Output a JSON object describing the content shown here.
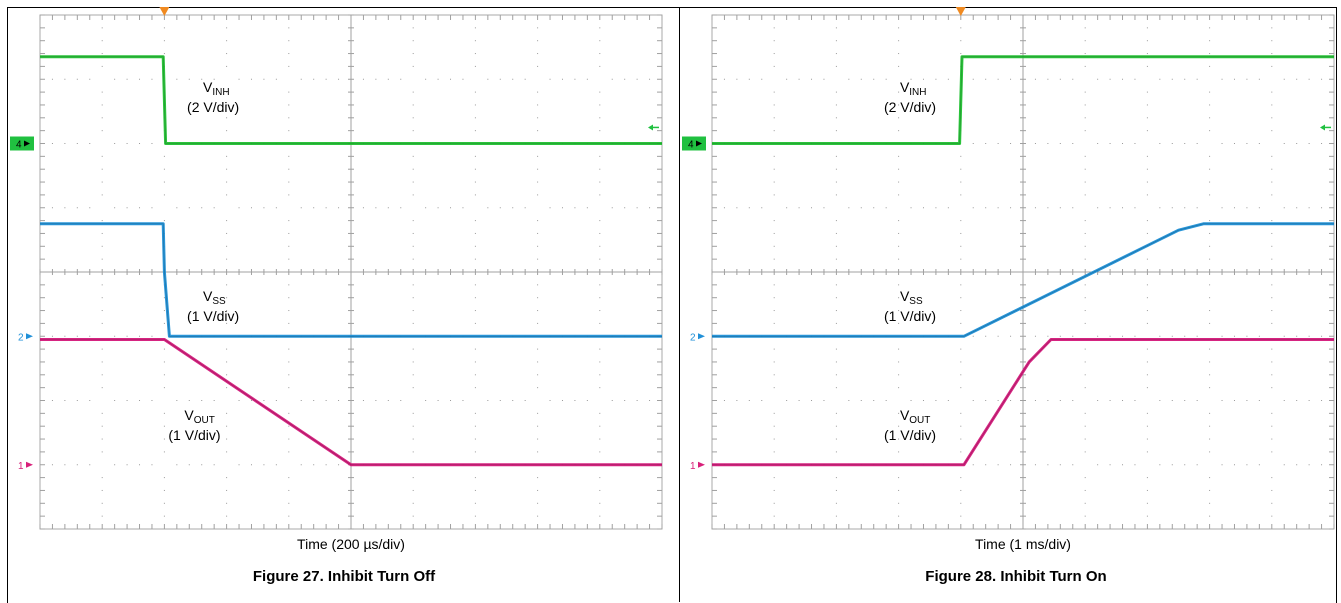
{
  "figures": [
    {
      "id": "fig27",
      "caption": "Figure 27. Inhibit Turn Off",
      "time_label": "Time (200 µs/div)",
      "chart_data": {
        "type": "line",
        "title": "Figure 27. Inhibit Turn Off",
        "xlabel": "Time (200 µs/div)",
        "ylabel": "",
        "x_unit": "div",
        "xlim": [
          0,
          10
        ],
        "ylim": [
          0,
          8
        ],
        "grid": true,
        "trigger_marker_x": 2,
        "channel_markers": [
          {
            "label": "4",
            "y": 6.0,
            "color": "#20c040"
          },
          {
            "label": "2",
            "y": 3.0,
            "color": "#2090d8"
          },
          {
            "label": "1",
            "y": 1.0,
            "color": "#d8207a"
          }
        ],
        "series": [
          {
            "name": "VINH",
            "color": "#20c030",
            "x": [
              0,
              1.98,
              2.02,
              10
            ],
            "y": [
              7.35,
              7.35,
              6.0,
              6.0
            ]
          },
          {
            "name": "VSS",
            "color": "#1c8fd6",
            "x": [
              0,
              1.98,
              2.0,
              2.08,
              10
            ],
            "y": [
              4.75,
              4.75,
              4.0,
              3.0,
              3.0
            ]
          },
          {
            "name": "VOUT",
            "color": "#d4187a",
            "x": [
              0,
              2.0,
              5.0,
              10
            ],
            "y": [
              2.95,
              2.95,
              1.0,
              1.0
            ]
          }
        ],
        "annotations": [
          {
            "main": "V",
            "sub": "INH",
            "scale": "(2 V/div)",
            "x": 2.3,
            "y": 6.8
          },
          {
            "main": "V",
            "sub": "SS",
            "scale": "(1 V/div)",
            "x": 2.3,
            "y": 3.55
          },
          {
            "main": "V",
            "sub": "OUT",
            "scale": "(1 V/div)",
            "x": 2.0,
            "y": 1.7
          }
        ]
      }
    },
    {
      "id": "fig28",
      "caption": "Figure 28. Inhibit Turn On",
      "time_label": "Time (1 ms/div)",
      "chart_data": {
        "type": "line",
        "title": "Figure 28. Inhibit Turn On",
        "xlabel": "Time (1 ms/div)",
        "ylabel": "",
        "x_unit": "div",
        "xlim": [
          0,
          10
        ],
        "ylim": [
          0,
          8
        ],
        "grid": true,
        "trigger_marker_x": 4,
        "channel_markers": [
          {
            "label": "4",
            "y": 6.0,
            "color": "#20c040"
          },
          {
            "label": "2",
            "y": 3.0,
            "color": "#2090d8"
          },
          {
            "label": "1",
            "y": 1.0,
            "color": "#d8207a"
          }
        ],
        "series": [
          {
            "name": "VINH",
            "color": "#20c030",
            "x": [
              0,
              3.98,
              4.02,
              10
            ],
            "y": [
              6.0,
              6.0,
              7.35,
              7.35
            ]
          },
          {
            "name": "VSS",
            "color": "#1c8fd6",
            "x": [
              0,
              4.05,
              7.5,
              7.9,
              10
            ],
            "y": [
              3.0,
              3.0,
              4.65,
              4.75,
              4.75
            ]
          },
          {
            "name": "VOUT",
            "color": "#d4187a",
            "x": [
              0,
              4.05,
              5.1,
              5.45,
              10
            ],
            "y": [
              1.0,
              1.0,
              2.6,
              2.95,
              2.95
            ]
          }
        ],
        "annotations": [
          {
            "main": "V",
            "sub": "INH",
            "scale": "(2 V/div)",
            "x": 2.7,
            "y": 6.8
          },
          {
            "main": "V",
            "sub": "SS",
            "scale": "(1 V/div)",
            "x": 2.7,
            "y": 3.55
          },
          {
            "main": "V",
            "sub": "OUT",
            "scale": "(1 V/div)",
            "x": 2.7,
            "y": 1.7
          }
        ]
      }
    }
  ]
}
